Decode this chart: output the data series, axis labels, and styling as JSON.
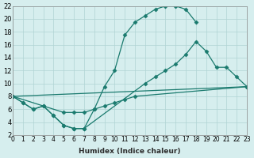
{
  "xlabel": "Humidex (Indice chaleur)",
  "background_color": "#d6eeee",
  "grid_color": "#b0d4d4",
  "line_color": "#1a7a6e",
  "xlim": [
    0,
    23
  ],
  "ylim": [
    2,
    22
  ],
  "xticks": [
    0,
    1,
    2,
    3,
    4,
    5,
    6,
    7,
    8,
    9,
    10,
    11,
    12,
    13,
    14,
    15,
    16,
    17,
    18,
    19,
    20,
    21,
    22,
    23
  ],
  "yticks": [
    2,
    4,
    6,
    8,
    10,
    12,
    14,
    16,
    18,
    20,
    22
  ],
  "line1_x": [
    0,
    1,
    2,
    3,
    4,
    5,
    6,
    7,
    8,
    9,
    10,
    11,
    12,
    13,
    14,
    15,
    16,
    17,
    18
  ],
  "line1_y": [
    8,
    7,
    6,
    6.5,
    5,
    3.5,
    3,
    3,
    6,
    9.5,
    12,
    17.5,
    19.5,
    20.5,
    21.5,
    22,
    22,
    21.5,
    19.5
  ],
  "line2_x": [
    0,
    1,
    2,
    3,
    4,
    5,
    6,
    7,
    13,
    14,
    15,
    16,
    17,
    18,
    19,
    20,
    21,
    22,
    23
  ],
  "line2_y": [
    8,
    7,
    6,
    6.5,
    5,
    3.5,
    3,
    3,
    10,
    11,
    12,
    13,
    14.5,
    16.5,
    15,
    12.5,
    12.5,
    11,
    9.5
  ],
  "line3_x": [
    0,
    23
  ],
  "line3_y": [
    8,
    9.5
  ],
  "line4_x": [
    0,
    5,
    6,
    7,
    8,
    9,
    10,
    11,
    12,
    23
  ],
  "line4_y": [
    8,
    5.5,
    5.5,
    5.5,
    6,
    6.5,
    7,
    7.5,
    8,
    9.5
  ]
}
